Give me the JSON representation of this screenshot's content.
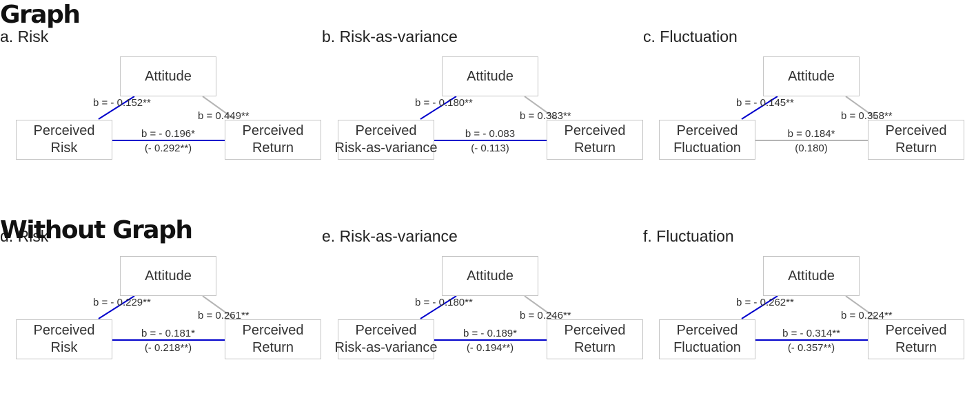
{
  "sections": [
    {
      "title": "Graph",
      "panels": [
        {
          "title": "a. Risk",
          "nodes": {
            "mediator": "Attitude",
            "x_line1": "Perceived",
            "x_line2": "Risk",
            "y_line1": "Perceived",
            "y_line2": "Return"
          },
          "paths": {
            "a": "b = - 0.152**",
            "b": "b = 0.449**",
            "c": "b = - 0.196*",
            "c_total": "(- 0.292**)"
          },
          "colors": {
            "a": "#0000cc",
            "b": "#b5b5b5",
            "c": "#0000cc"
          }
        },
        {
          "title": "b. Risk-as-variance",
          "nodes": {
            "mediator": "Attitude",
            "x_line1": "Perceived",
            "x_line2": "Risk-as-variance",
            "y_line1": "Perceived",
            "y_line2": "Return"
          },
          "paths": {
            "a": "b = - 0.180**",
            "b": "b = 0.383**",
            "c": "b = - 0.083",
            "c_total": "(- 0.113)"
          },
          "colors": {
            "a": "#0000cc",
            "b": "#b5b5b5",
            "c": "#0000cc"
          }
        },
        {
          "title": "c. Fluctuation",
          "nodes": {
            "mediator": "Attitude",
            "x_line1": "Perceived",
            "x_line2": "Fluctuation",
            "y_line1": "Perceived",
            "y_line2": "Return"
          },
          "paths": {
            "a": "b = - 0.145**",
            "b": "b = 0.358**",
            "c": "b = 0.184*",
            "c_total": "(0.180)"
          },
          "colors": {
            "a": "#0000cc",
            "b": "#b5b5b5",
            "c": "#b5b5b5"
          }
        }
      ]
    },
    {
      "title": "Without Graph",
      "panels": [
        {
          "title": "d. Risk",
          "nodes": {
            "mediator": "Attitude",
            "x_line1": "Perceived",
            "x_line2": "Risk",
            "y_line1": "Perceived",
            "y_line2": "Return"
          },
          "paths": {
            "a": "b = - 0.229**",
            "b": "b = 0.261**",
            "c": "b = - 0.181*",
            "c_total": "(- 0.218**)"
          },
          "colors": {
            "a": "#0000cc",
            "b": "#b5b5b5",
            "c": "#0000cc"
          }
        },
        {
          "title": "e. Risk-as-variance",
          "nodes": {
            "mediator": "Attitude",
            "x_line1": "Perceived",
            "x_line2": "Risk-as-variance",
            "y_line1": "Perceived",
            "y_line2": "Return"
          },
          "paths": {
            "a": "b = - 0.180**",
            "b": "b = 0.246**",
            "c": "b = - 0.189*",
            "c_total": "(- 0.194**)"
          },
          "colors": {
            "a": "#0000cc",
            "b": "#b5b5b5",
            "c": "#0000cc"
          }
        },
        {
          "title": "f. Fluctuation",
          "nodes": {
            "mediator": "Attitude",
            "x_line1": "Perceived",
            "x_line2": "Fluctuation",
            "y_line1": "Perceived",
            "y_line2": "Return"
          },
          "paths": {
            "a": "b = - 0.262**",
            "b": "b = 0.224**",
            "c": "b = - 0.314**",
            "c_total": "(- 0.357**)"
          },
          "colors": {
            "a": "#0000cc",
            "b": "#b5b5b5",
            "c": "#0000cc"
          }
        }
      ]
    }
  ]
}
